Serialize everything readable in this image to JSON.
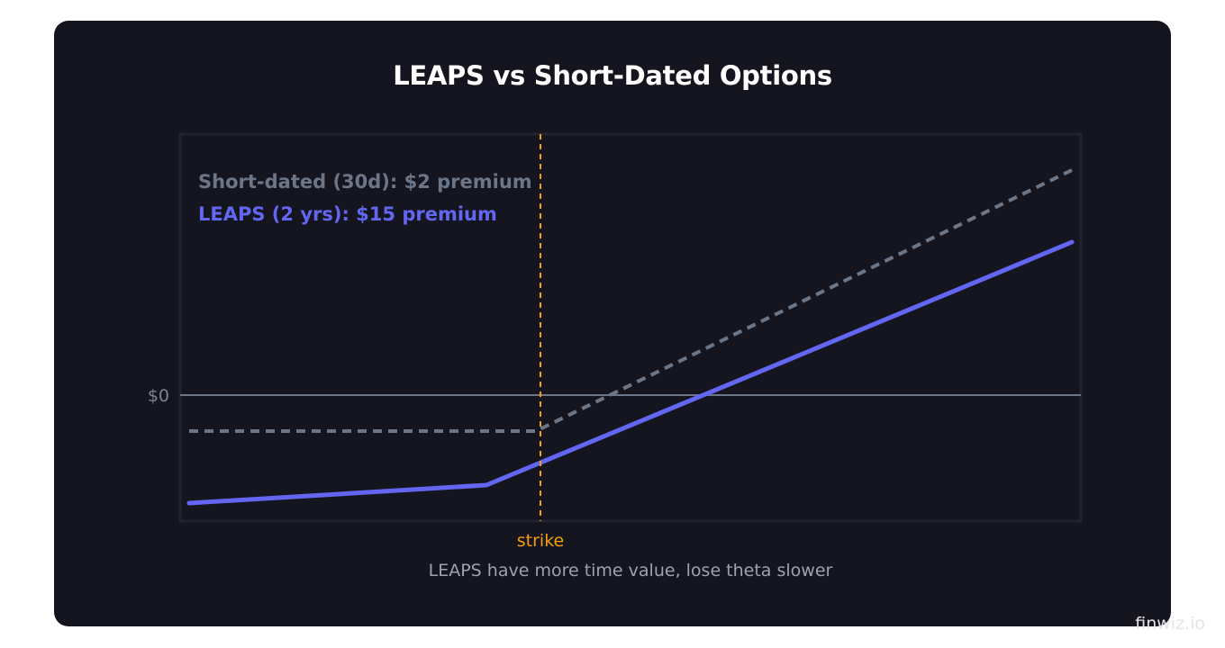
{
  "chart": {
    "title": "LEAPS vs Short-Dated Options",
    "caption": "LEAPS have more time value, lose theta slower"
  },
  "watermark": "finwiz.io",
  "colors": {
    "card_background": "#15151f",
    "plot_border": "#23232f",
    "zero_line": "#6c7689",
    "short_dated": "#6c7689",
    "leaps": "#6366f1",
    "strike": "#f59e0b",
    "axis_text": "#7c8396",
    "caption_text": "#9ca3af"
  },
  "chart_data": {
    "type": "line",
    "title": "LEAPS vs Short-Dated Options",
    "xlabel": "",
    "ylabel": "",
    "x_axis_ticks": [],
    "y_tick_labels": [
      {
        "value": 0,
        "label": "$0"
      }
    ],
    "xlim": [
      0,
      100
    ],
    "ylim": [
      -7,
      14.5
    ],
    "grid": false,
    "legend": "top-left",
    "series": [
      {
        "name": "Short-dated (30d): $2 premium",
        "style": "dashed",
        "color": "#6c7689",
        "x": [
          1,
          39.5,
          99
        ],
        "y": [
          -2,
          -2,
          12.5
        ]
      },
      {
        "name": "LEAPS (2 yrs): $15 premium",
        "style": "solid",
        "color": "#6366f1",
        "x": [
          1,
          34,
          99
        ],
        "y": [
          -6,
          -5,
          8.5
        ]
      }
    ],
    "annotations": [
      {
        "type": "vline",
        "x": 40,
        "label": "strike",
        "color": "#f59e0b",
        "style": "dashed"
      },
      {
        "type": "hline",
        "y": 0,
        "label": "$0",
        "color": "#6c7689"
      }
    ]
  }
}
